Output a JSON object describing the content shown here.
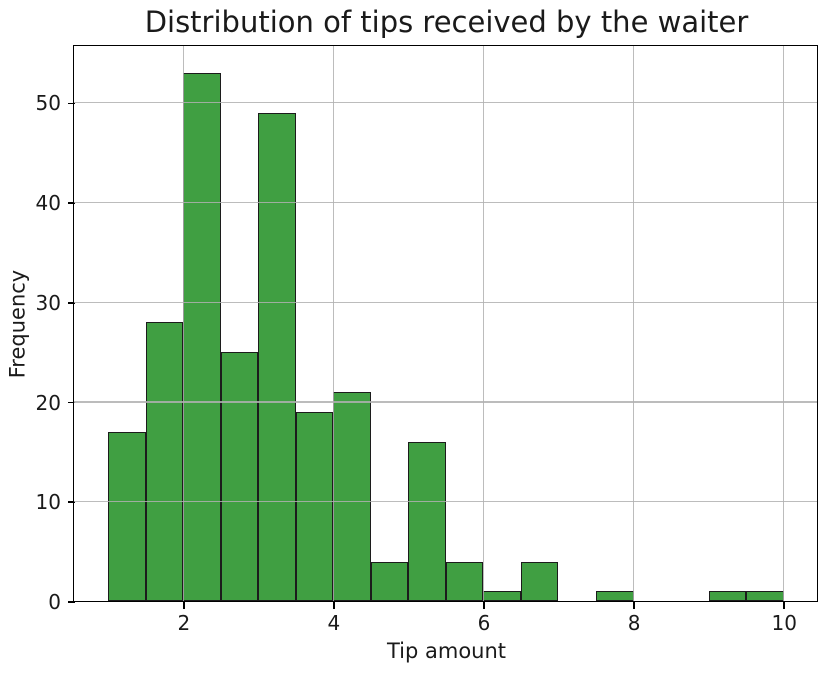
{
  "chart_data": {
    "type": "bar",
    "subtype": "histogram",
    "title": "Distribution of tips received by the waiter",
    "xlabel": "Tip amount",
    "ylabel": "Frequency",
    "bin_start": 1.0,
    "bin_width": 0.5,
    "bin_edges": [
      1.0,
      1.5,
      2.0,
      2.5,
      3.0,
      3.5,
      4.0,
      4.5,
      5.0,
      5.5,
      6.0,
      6.5,
      7.0,
      7.5,
      8.0,
      8.5,
      9.0,
      9.5,
      10.0
    ],
    "counts": [
      17,
      28,
      53,
      25,
      49,
      19,
      21,
      4,
      16,
      4,
      1,
      4,
      0,
      1,
      0,
      0,
      1,
      1
    ],
    "total_samples": 244,
    "xlim": [
      0.55,
      10.45
    ],
    "ylim": [
      0,
      55.65
    ],
    "xticks": [
      2,
      4,
      6,
      8,
      10
    ],
    "yticks": [
      0,
      10,
      20,
      30,
      40,
      50
    ],
    "grid": true,
    "grid_above_bars": true,
    "legend": null,
    "colors": {
      "bar_fill": "#409f42",
      "bar_edge": "#1c1c1c",
      "grid": "#b0b0b0",
      "spine": "#000000",
      "text": "#1a1a1a",
      "background": "#ffffff"
    }
  }
}
